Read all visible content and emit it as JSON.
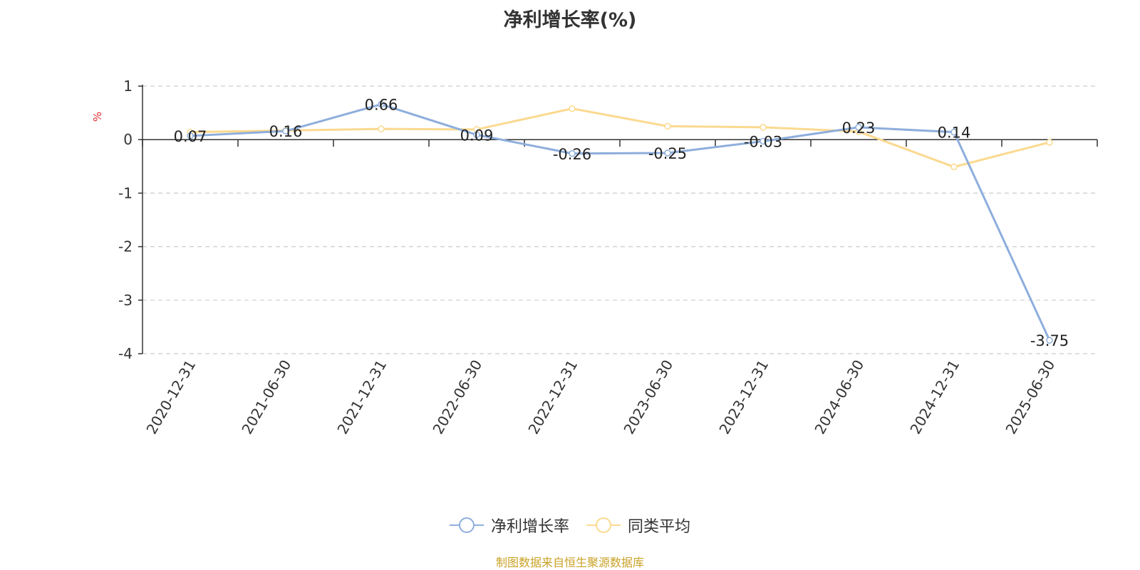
{
  "title": "净利增长率(%)",
  "source_note": "制图数据来自恒生聚源数据库",
  "chart_data": {
    "type": "line",
    "title": "净利增长率(%)",
    "ylabel": "%",
    "x": [
      "2020-12-31",
      "2021-06-30",
      "2021-12-31",
      "2022-06-30",
      "2022-12-31",
      "2023-06-30",
      "2023-12-31",
      "2024-06-30",
      "2024-12-31",
      "2025-06-30"
    ],
    "ylim": [
      -4,
      1
    ],
    "yticks": [
      "1",
      "0",
      "-1",
      "-2",
      "-3",
      "-4"
    ],
    "grid": true,
    "legend_position": "bottom",
    "series": [
      {
        "name": "净利增长率",
        "color": "#8eaedc",
        "values": [
          0.07,
          0.16,
          0.66,
          0.09,
          -0.26,
          -0.25,
          -0.03,
          0.23,
          0.14,
          -3.75
        ],
        "labels": [
          "0.07",
          "0.16",
          "0.66",
          "0.09",
          "-0.26",
          "-0.25",
          "-0.03",
          "0.23",
          "0.14",
          "-3.75"
        ]
      },
      {
        "name": "同类平均",
        "color": "#fbd990",
        "values": [
          0.14,
          0.17,
          0.2,
          0.19,
          0.58,
          0.25,
          0.23,
          0.15,
          -0.51,
          -0.05
        ]
      }
    ]
  }
}
